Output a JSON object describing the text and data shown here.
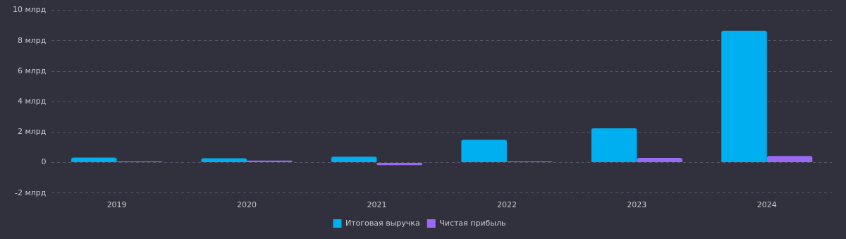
{
  "chart_data": {
    "type": "bar",
    "categories": [
      "2019",
      "2020",
      "2021",
      "2022",
      "2023",
      "2024"
    ],
    "series": [
      {
        "name": "Итоговая выручка",
        "color": "#00aff0",
        "values": [
          0.33,
          0.28,
          0.39,
          1.5,
          2.25,
          8.65
        ]
      },
      {
        "name": "Чистая прибыль",
        "color": "#9b6af5",
        "values": [
          0.07,
          0.13,
          -0.17,
          0.07,
          0.3,
          0.43
        ]
      }
    ],
    "ylim": [
      -2,
      10
    ],
    "yticks": [
      {
        "value": -2,
        "label": "-2 млрд"
      },
      0,
      {
        "value": 2,
        "label": "2 млрд"
      },
      {
        "value": 4,
        "label": "4 млрд"
      },
      {
        "value": 6,
        "label": "6 млрд"
      },
      {
        "value": 8,
        "label": "8 млрд"
      },
      {
        "value": 10,
        "label": "10 млрд"
      }
    ],
    "grid": "y",
    "legend": "bottom"
  }
}
